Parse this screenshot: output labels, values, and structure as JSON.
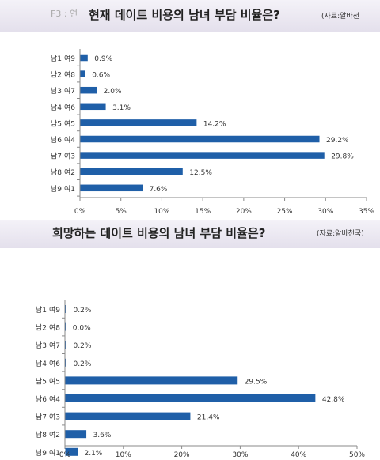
{
  "charts": [
    {
      "tag": "F3 : 연",
      "title": "현재 데이트 비용의 남녀 부담 비율은?",
      "source": "(자료:알바천"
    },
    {
      "title": "희망하는 데이트 비용의 남녀 부담 비율은?",
      "source": "(자료:알바천국)"
    }
  ],
  "chart_data": [
    {
      "type": "bar",
      "orientation": "horizontal",
      "title": "현재 데이트 비용의 남녀 부담 비율은?",
      "categories": [
        "남1:여9",
        "남2:여8",
        "남3:여7",
        "남4:여6",
        "남5:여5",
        "남6:여4",
        "남7:여3",
        "남8:여2",
        "남9:여1"
      ],
      "values": [
        0.9,
        0.6,
        2.0,
        3.1,
        14.2,
        29.2,
        29.8,
        12.5,
        7.6
      ],
      "value_labels": [
        "0.9%",
        "0.6%",
        "2.0%",
        "3.1%",
        "14.2%",
        "29.2%",
        "29.8%",
        "12.5%",
        "7.6%"
      ],
      "xlim": [
        0,
        35
      ],
      "xticks": [
        0,
        5,
        10,
        15,
        20,
        25,
        30,
        35
      ],
      "xtick_labels": [
        "0%",
        "5%",
        "10%",
        "15%",
        "20%",
        "25%",
        "30%",
        "35%"
      ],
      "grid": false,
      "color": "#1f5fa8"
    },
    {
      "type": "bar",
      "orientation": "horizontal",
      "title": "희망하는 데이트 비용의 남녀 부담 비율은?",
      "categories": [
        "남1:여9",
        "남2:여8",
        "남3:여7",
        "남4:여6",
        "남5:여5",
        "남6:여4",
        "남7:여3",
        "남8:여2",
        "남9:여1"
      ],
      "values": [
        0.2,
        0.0,
        0.2,
        0.2,
        29.5,
        42.8,
        21.4,
        3.6,
        2.1
      ],
      "value_labels": [
        "0.2%",
        "0.0%",
        "0.2%",
        "0.2%",
        "29.5%",
        "42.8%",
        "21.4%",
        "3.6%",
        "2.1%"
      ],
      "xlim": [
        0,
        50
      ],
      "xticks": [
        0,
        10,
        20,
        30,
        40,
        50
      ],
      "xtick_labels": [
        "0%",
        "10%",
        "20%",
        "30%",
        "40%",
        "50%"
      ],
      "grid": false,
      "color": "#1f5fa8"
    }
  ]
}
